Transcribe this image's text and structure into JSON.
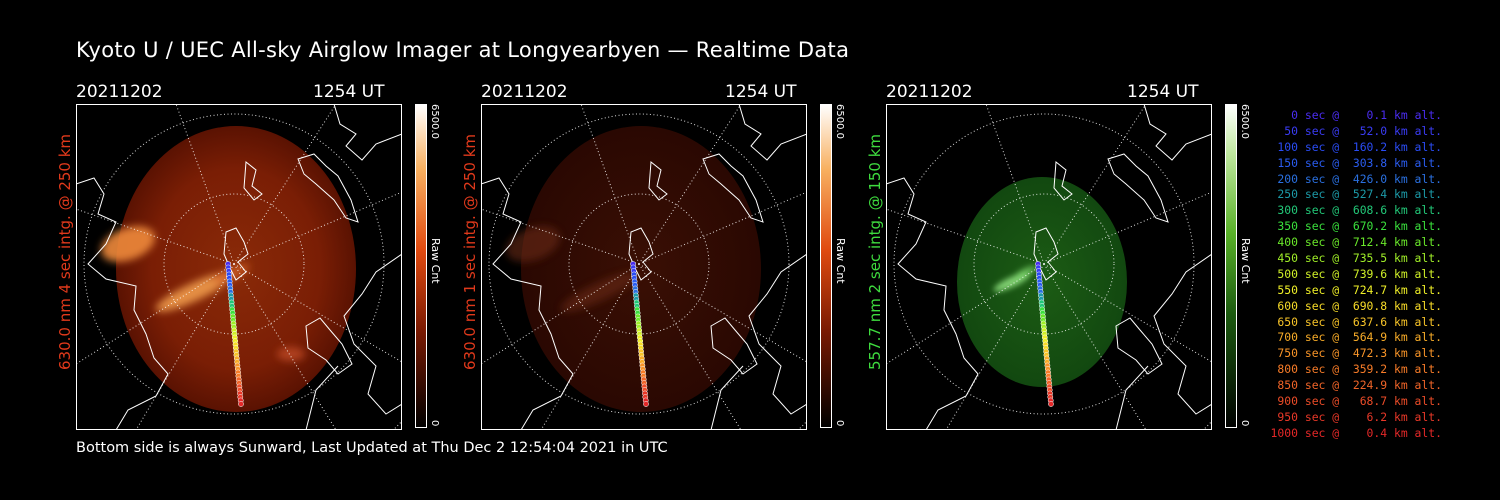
{
  "title": "Kyoto U / UEC All-sky Airglow Imager at Longyearbyen — Realtime Data",
  "footer": "Bottom side is always Sunward, Last Updated at Thu Dec  2 12:54:04 2021 in UTC",
  "panels": [
    {
      "date": "20211202",
      "time": "1254 UT",
      "ylabel": "630.0 nm  4 sec intg. @ 250 km",
      "color": "#e0391b",
      "colorbar_max": "6500.0",
      "colorbar_min": "0",
      "colorbar_label": "Raw Cnt"
    },
    {
      "date": "20211202",
      "time": "1254 UT",
      "ylabel": "630.0 nm  1 sec intg. @ 250 km",
      "color": "#e0391b",
      "colorbar_max": "6500.0",
      "colorbar_min": "0",
      "colorbar_label": "Raw Cnt"
    },
    {
      "date": "20211202",
      "time": "1254 UT",
      "ylabel": "557.7 nm  2 sec intg. @ 150 km",
      "color": "#3edb3e",
      "colorbar_max": "6500.0",
      "colorbar_min": "0",
      "colorbar_label": "Raw Cnt"
    }
  ],
  "legend": [
    {
      "text": "0 sec @    0.1 km alt.",
      "color": "#4a2cf0"
    },
    {
      "text": "50 sec @   52.0 km alt.",
      "color": "#3a3cf4"
    },
    {
      "text": "100 sec @  160.2 km alt.",
      "color": "#2a4cf4"
    },
    {
      "text": "150 sec @  303.8 km alt.",
      "color": "#2a5cf0"
    },
    {
      "text": "200 sec @  426.0 km alt.",
      "color": "#2a70e0"
    },
    {
      "text": "250 sec @  527.4 km alt.",
      "color": "#1c9aa8"
    },
    {
      "text": "300 sec @  608.6 km alt.",
      "color": "#22c878"
    },
    {
      "text": "350 sec @  670.2 km alt.",
      "color": "#3ae03c"
    },
    {
      "text": "400 sec @  712.4 km alt.",
      "color": "#6ae82a"
    },
    {
      "text": "450 sec @  735.5 km alt.",
      "color": "#a0ee28"
    },
    {
      "text": "500 sec @  739.6 km alt.",
      "color": "#d0f028"
    },
    {
      "text": "550 sec @  724.7 km alt.",
      "color": "#f0f028"
    },
    {
      "text": "600 sec @  690.8 km alt.",
      "color": "#f8dc28"
    },
    {
      "text": "650 sec @  637.6 km alt.",
      "color": "#f8c428"
    },
    {
      "text": "700 sec @  564.9 km alt.",
      "color": "#f8ac28"
    },
    {
      "text": "750 sec @  472.3 km alt.",
      "color": "#f89428"
    },
    {
      "text": "800 sec @  359.2 km alt.",
      "color": "#f87c28"
    },
    {
      "text": "850 sec @  224.9 km alt.",
      "color": "#f06428"
    },
    {
      "text": "900 sec @   68.7 km alt.",
      "color": "#ec4c28"
    },
    {
      "text": "950 sec @    6.2 km alt.",
      "color": "#e83828"
    },
    {
      "text": "1000 sec @    0.4 km alt.",
      "color": "#e42828"
    }
  ]
}
